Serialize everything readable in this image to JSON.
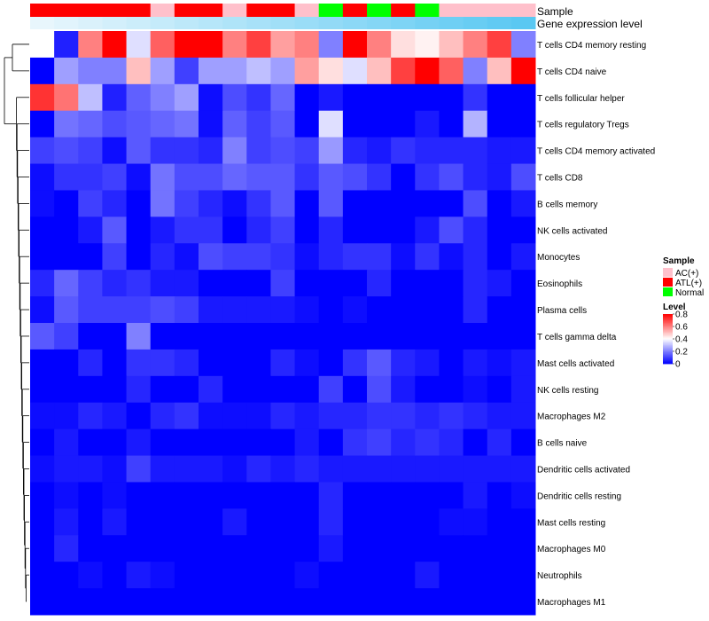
{
  "chart_data": {
    "type": "heatmap",
    "annotations": {
      "sample_label": "Sample",
      "expression_label": "Gene expression level",
      "sample_groups": [
        "ATL(+)",
        "ATL(+)",
        "ATL(+)",
        "ATL(+)",
        "ATL(+)",
        "AC(+)",
        "ATL(+)",
        "ATL(+)",
        "AC(+)",
        "ATL(+)",
        "ATL(+)",
        "AC(+)",
        "Normal",
        "ATL(+)",
        "Normal",
        "ATL(+)",
        "Normal",
        "AC(+)",
        "AC(+)",
        "AC(+)",
        "AC(+)"
      ],
      "expression_levels": [
        0.0,
        0.05,
        0.1,
        0.15,
        0.2,
        0.25,
        0.3,
        0.35,
        0.4,
        0.45,
        0.5,
        0.55,
        0.6,
        0.65,
        0.7,
        0.75,
        0.8,
        0.85,
        0.9,
        0.95,
        1.0
      ]
    },
    "rows": [
      "T cells CD4 memory resting",
      "T cells CD4 naive",
      "T cells follicular helper",
      "T cells regulatory  Tregs",
      "T cells CD4 memory activated",
      "T cells CD8",
      "B cells memory",
      "NK cells activated",
      "Monocytes",
      "Eosinophils",
      "Plasma cells",
      "T cells gamma delta",
      "Mast cells activated",
      "NK cells resting",
      "Macrophages M2",
      "B cells naive",
      "Dendritic cells activated",
      "Dendritic cells resting",
      "Mast cells resting",
      "Macrophages M0",
      "Neutrophils",
      "Macrophages M1"
    ],
    "values": [
      [
        0.4,
        0.05,
        0.6,
        0.8,
        0.35,
        0.65,
        0.8,
        0.8,
        0.6,
        0.7,
        0.55,
        0.6,
        0.2,
        0.8,
        0.6,
        0.45,
        0.42,
        0.5,
        0.6,
        0.7,
        0.2
      ],
      [
        0.0,
        0.25,
        0.2,
        0.2,
        0.5,
        0.25,
        0.1,
        0.25,
        0.25,
        0.3,
        0.25,
        0.55,
        0.45,
        0.35,
        0.5,
        0.7,
        0.8,
        0.65,
        0.2,
        0.5,
        0.8
      ],
      [
        0.72,
        0.62,
        0.3,
        0.05,
        0.15,
        0.2,
        0.25,
        0.02,
        0.12,
        0.08,
        0.16,
        0.0,
        0.04,
        0.0,
        0.0,
        0.0,
        0.0,
        0.0,
        0.08,
        0.0,
        0.0
      ],
      [
        0.0,
        0.18,
        0.16,
        0.12,
        0.14,
        0.16,
        0.18,
        0.02,
        0.15,
        0.1,
        0.14,
        0.0,
        0.35,
        0.0,
        0.0,
        0.0,
        0.04,
        0.0,
        0.28,
        0.0,
        0.0
      ],
      [
        0.1,
        0.12,
        0.1,
        0.02,
        0.14,
        0.08,
        0.08,
        0.06,
        0.2,
        0.1,
        0.12,
        0.1,
        0.24,
        0.06,
        0.04,
        0.08,
        0.06,
        0.06,
        0.06,
        0.04,
        0.04
      ],
      [
        0.02,
        0.08,
        0.08,
        0.1,
        0.02,
        0.18,
        0.12,
        0.12,
        0.16,
        0.14,
        0.14,
        0.08,
        0.14,
        0.12,
        0.08,
        0.0,
        0.08,
        0.12,
        0.06,
        0.04,
        0.12
      ],
      [
        0.02,
        0.0,
        0.1,
        0.06,
        0.0,
        0.18,
        0.1,
        0.06,
        0.02,
        0.08,
        0.14,
        0.0,
        0.14,
        0.0,
        0.0,
        0.0,
        0.0,
        0.0,
        0.12,
        0.0,
        0.04
      ],
      [
        0.0,
        0.0,
        0.04,
        0.14,
        0.0,
        0.04,
        0.08,
        0.08,
        0.0,
        0.06,
        0.1,
        0.0,
        0.06,
        0.0,
        0.0,
        0.0,
        0.04,
        0.12,
        0.06,
        0.0,
        0.0
      ],
      [
        0.0,
        0.0,
        0.0,
        0.1,
        0.0,
        0.06,
        0.02,
        0.12,
        0.1,
        0.1,
        0.08,
        0.02,
        0.06,
        0.08,
        0.08,
        0.02,
        0.08,
        0.02,
        0.06,
        0.0,
        0.04
      ],
      [
        0.06,
        0.16,
        0.1,
        0.06,
        0.08,
        0.04,
        0.04,
        0.0,
        0.0,
        0.0,
        0.1,
        0.0,
        0.0,
        0.0,
        0.06,
        0.0,
        0.0,
        0.0,
        0.06,
        0.04,
        0.0
      ],
      [
        0.02,
        0.14,
        0.1,
        0.1,
        0.1,
        0.12,
        0.1,
        0.04,
        0.04,
        0.04,
        0.04,
        0.02,
        0.0,
        0.02,
        0.0,
        0.0,
        0.0,
        0.0,
        0.06,
        0.0,
        0.0
      ],
      [
        0.14,
        0.1,
        0.0,
        0.0,
        0.2,
        0.0,
        0.0,
        0.0,
        0.0,
        0.0,
        0.0,
        0.0,
        0.0,
        0.0,
        0.0,
        0.0,
        0.0,
        0.0,
        0.0,
        0.0,
        0.0
      ],
      [
        0.0,
        0.0,
        0.06,
        0.0,
        0.08,
        0.08,
        0.06,
        0.0,
        0.0,
        0.0,
        0.06,
        0.02,
        0.0,
        0.08,
        0.14,
        0.06,
        0.04,
        0.0,
        0.04,
        0.02,
        0.04
      ],
      [
        0.0,
        0.0,
        0.0,
        0.0,
        0.06,
        0.0,
        0.0,
        0.06,
        0.0,
        0.0,
        0.0,
        0.0,
        0.1,
        0.0,
        0.12,
        0.04,
        0.0,
        0.0,
        0.02,
        0.0,
        0.04
      ],
      [
        0.02,
        0.02,
        0.06,
        0.04,
        0.0,
        0.06,
        0.08,
        0.02,
        0.02,
        0.02,
        0.06,
        0.04,
        0.06,
        0.06,
        0.08,
        0.08,
        0.06,
        0.08,
        0.06,
        0.04,
        0.04
      ],
      [
        0.0,
        0.04,
        0.0,
        0.0,
        0.04,
        0.0,
        0.0,
        0.0,
        0.0,
        0.0,
        0.0,
        0.04,
        0.0,
        0.08,
        0.1,
        0.06,
        0.08,
        0.06,
        0.0,
        0.06,
        0.0
      ],
      [
        0.02,
        0.04,
        0.04,
        0.02,
        0.1,
        0.04,
        0.04,
        0.04,
        0.02,
        0.06,
        0.04,
        0.06,
        0.04,
        0.04,
        0.04,
        0.04,
        0.04,
        0.04,
        0.04,
        0.04,
        0.04
      ],
      [
        0.0,
        0.02,
        0.0,
        0.02,
        0.0,
        0.0,
        0.0,
        0.0,
        0.0,
        0.0,
        0.0,
        0.0,
        0.06,
        0.0,
        0.0,
        0.0,
        0.0,
        0.0,
        0.04,
        0.0,
        0.02
      ],
      [
        0.0,
        0.04,
        0.0,
        0.04,
        0.0,
        0.0,
        0.0,
        0.0,
        0.04,
        0.0,
        0.0,
        0.0,
        0.06,
        0.0,
        0.0,
        0.0,
        0.0,
        0.02,
        0.02,
        0.0,
        0.0
      ],
      [
        0.0,
        0.06,
        0.0,
        0.0,
        0.0,
        0.0,
        0.0,
        0.0,
        0.0,
        0.0,
        0.0,
        0.0,
        0.04,
        0.0,
        0.0,
        0.0,
        0.0,
        0.0,
        0.0,
        0.0,
        0.0
      ],
      [
        0.0,
        0.0,
        0.02,
        0.0,
        0.04,
        0.02,
        0.0,
        0.0,
        0.0,
        0.0,
        0.0,
        0.02,
        0.0,
        0.0,
        0.0,
        0.0,
        0.04,
        0.0,
        0.0,
        0.0,
        0.0
      ],
      [
        0.0,
        0.0,
        0.0,
        0.0,
        0.0,
        0.0,
        0.0,
        0.0,
        0.0,
        0.0,
        0.0,
        0.0,
        0.0,
        0.0,
        0.0,
        0.0,
        0.0,
        0.0,
        0.0,
        0.0,
        0.0
      ]
    ],
    "color_scale": {
      "low": "#0000ff",
      "mid": "#ffffff",
      "high": "#ff0000",
      "mid_value": 0.4,
      "range": [
        0,
        0.8
      ]
    },
    "legend": {
      "sample_title": "Sample",
      "sample_items": [
        {
          "label": "AC(+)",
          "color": "#ffc0cb"
        },
        {
          "label": "ATL(+)",
          "color": "#ff0000"
        },
        {
          "label": "Normal",
          "color": "#00ff00"
        }
      ],
      "level_title": "Level",
      "level_ticks": [
        "0.8",
        "0.6",
        "0.4",
        "0.2",
        "0"
      ],
      "level_tick_values": [
        0.8,
        0.6,
        0.4,
        0.2,
        0.0
      ]
    },
    "expression_colors": {
      "low": "#e8f6fc",
      "high": "#5ac8f2"
    },
    "dendrogram_color": "#000000"
  }
}
